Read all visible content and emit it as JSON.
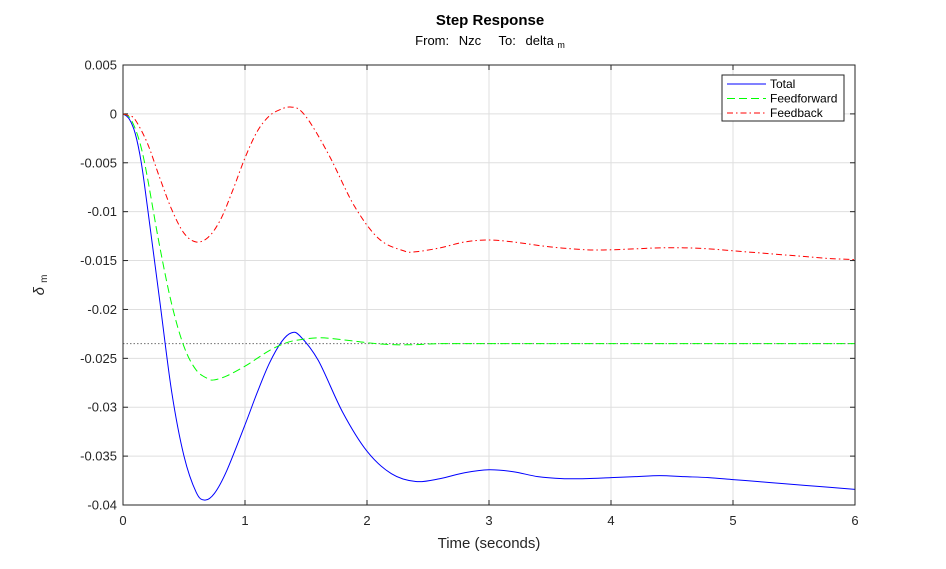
{
  "chart_data": {
    "type": "line",
    "title": "Step Response",
    "subtitle": {
      "from_prefix": "From:",
      "from_value": "Nzc",
      "to_prefix": "To:",
      "to_value": "delta",
      "to_subscript": "m"
    },
    "xlabel": "Time (seconds)",
    "ylabel": {
      "symbol": "δ",
      "subscript": "m"
    },
    "xlim": [
      0,
      6
    ],
    "ylim": [
      -0.04,
      0.005
    ],
    "x_ticks": [
      "0",
      "1",
      "2",
      "3",
      "4",
      "5",
      "6"
    ],
    "x_tick_values": [
      0,
      1,
      2,
      3,
      4,
      5,
      6
    ],
    "y_ticks": [
      "0.005",
      "0",
      "-0.005",
      "-0.01",
      "-0.015",
      "-0.02",
      "-0.025",
      "-0.03",
      "-0.035",
      "-0.04"
    ],
    "y_tick_values": [
      0.005,
      0,
      -0.005,
      -0.01,
      -0.015,
      -0.02,
      -0.025,
      -0.03,
      -0.035,
      -0.04
    ],
    "grid": true,
    "legend_position": "top-right",
    "steady_state_reference": -0.0235,
    "series": [
      {
        "name": "Total",
        "color": "#0000ff",
        "style": "solid",
        "x": [
          0,
          0.05,
          0.1,
          0.15,
          0.2,
          0.3,
          0.4,
          0.5,
          0.6,
          0.67,
          0.75,
          0.85,
          1.0,
          1.1,
          1.2,
          1.3,
          1.38,
          1.45,
          1.6,
          1.8,
          2.0,
          2.2,
          2.4,
          2.6,
          2.8,
          3.0,
          3.2,
          3.4,
          3.6,
          3.8,
          4.0,
          4.2,
          4.4,
          4.6,
          4.8,
          5.0,
          5.2,
          5.4,
          5.6,
          5.8,
          6.0
        ],
        "y": [
          0,
          -0.0005,
          -0.002,
          -0.005,
          -0.0095,
          -0.019,
          -0.0285,
          -0.035,
          -0.0387,
          -0.0395,
          -0.0388,
          -0.0365,
          -0.0318,
          -0.0285,
          -0.0255,
          -0.0233,
          -0.0224,
          -0.0227,
          -0.0252,
          -0.0305,
          -0.0345,
          -0.0368,
          -0.0376,
          -0.0373,
          -0.0367,
          -0.0364,
          -0.0366,
          -0.0371,
          -0.0373,
          -0.0373,
          -0.0372,
          -0.0371,
          -0.037,
          -0.0371,
          -0.0372,
          -0.0374,
          -0.0376,
          -0.0378,
          -0.038,
          -0.0382,
          -0.0384
        ]
      },
      {
        "name": "Feedforward",
        "color": "#00ff00",
        "style": "dashed",
        "x": [
          0,
          0.05,
          0.1,
          0.15,
          0.2,
          0.3,
          0.4,
          0.5,
          0.6,
          0.7,
          0.75,
          0.85,
          1.0,
          1.1,
          1.2,
          1.3,
          1.4,
          1.6,
          1.8,
          2.0,
          2.2,
          2.4,
          2.6,
          3.0,
          3.5,
          4.0,
          4.5,
          5.0,
          5.5,
          6.0
        ],
        "y": [
          0,
          -0.0003,
          -0.0015,
          -0.0035,
          -0.0065,
          -0.0135,
          -0.0195,
          -0.0238,
          -0.0262,
          -0.0271,
          -0.0272,
          -0.0268,
          -0.0258,
          -0.025,
          -0.0242,
          -0.0236,
          -0.0232,
          -0.0229,
          -0.0231,
          -0.0234,
          -0.0236,
          -0.0236,
          -0.0235,
          -0.0235,
          -0.0235,
          -0.0235,
          -0.0235,
          -0.0235,
          -0.0235,
          -0.0235
        ]
      },
      {
        "name": "Feedback",
        "color": "#ff0000",
        "style": "dashdot",
        "x": [
          0,
          0.05,
          0.1,
          0.2,
          0.3,
          0.4,
          0.5,
          0.6,
          0.7,
          0.8,
          0.9,
          1.0,
          1.1,
          1.2,
          1.3,
          1.37,
          1.45,
          1.55,
          1.7,
          1.9,
          2.1,
          2.3,
          2.4,
          2.6,
          2.8,
          3.0,
          3.2,
          3.5,
          3.8,
          4.0,
          4.2,
          4.4,
          4.6,
          4.8,
          5.0,
          5.2,
          5.4,
          5.6,
          5.8,
          6.0
        ],
        "y": [
          0,
          -0.0002,
          -0.0006,
          -0.003,
          -0.0065,
          -0.0098,
          -0.0122,
          -0.0131,
          -0.0126,
          -0.0108,
          -0.0078,
          -0.0045,
          -0.0018,
          -0.0002,
          0.0005,
          0.0007,
          0.0004,
          -0.0012,
          -0.0045,
          -0.0095,
          -0.0128,
          -0.014,
          -0.0141,
          -0.0137,
          -0.0131,
          -0.0129,
          -0.0131,
          -0.0136,
          -0.0139,
          -0.0139,
          -0.0138,
          -0.0137,
          -0.0137,
          -0.0138,
          -0.014,
          -0.0142,
          -0.0144,
          -0.0146,
          -0.0148,
          -0.0149
        ]
      }
    ]
  }
}
